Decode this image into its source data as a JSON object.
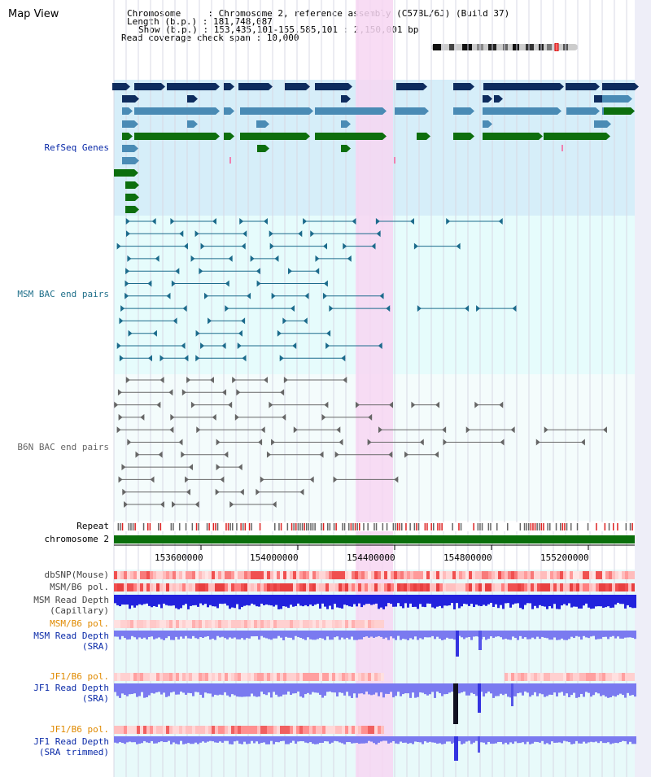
{
  "title": "Map View",
  "info": {
    "chromosome_line": "Chromosome     : Chromosome 2, reference assembly (C57BL/6J) (Build 37)",
    "length_line": "Length (b.p.) : 181,748,087",
    "show_line": "Show (b.p.) : 153,435,101-155,585,101 : 2,150,001 bp",
    "span_line": "Read coverage check span : 10,000"
  },
  "tracks": {
    "refseq": "RefSeq Genes",
    "msm_bac": "MSM BAC end pairs",
    "b6n_bac": "B6N BAC end pairs",
    "repeat": "Repeat",
    "chromosome": "chromosome 2",
    "dbsnp": "dbSNP(Mouse)",
    "msm_b6_pol_1": "MSM/B6 pol.",
    "msm_depth_cap_1": "MSM Read Depth",
    "msm_depth_cap_2": "(Capillary)",
    "msm_b6_pol_2": "MSM/B6 pol.",
    "msm_depth_sra_1": "MSM Read Depth",
    "msm_depth_sra_2": "(SRA)",
    "jf1_b6_pol_1": "JF1/B6 pol.",
    "jf1_depth_sra_1": "JF1 Read Depth",
    "jf1_depth_sra_2": "(SRA)",
    "jf1_b6_pol_2": "JF1/B6 pol.",
    "jf1_depth_trim_1": "JF1 Read Depth",
    "jf1_depth_trim_2": "(SRA trimmed)"
  },
  "ticks": [
    "153600000",
    "154000000",
    "154400000",
    "154800000",
    "155200000"
  ],
  "colors": {
    "refseq_bg": "#d6eef9",
    "bac_bg": "#e6fcfc",
    "highlight": "#f7d6f2",
    "gene_dark": "#0e2c5e",
    "gene_mid": "#4a8bb5",
    "gene_green": "#0d6e0d",
    "msm_line": "#1c6b8c",
    "b6n_line": "#666666",
    "chrom_bar": "#0a6e0a",
    "depth_blue": "#2222dd",
    "depth_purple": "#7a7af0",
    "label_blue": "#0a2aa8",
    "label_teal": "#1f6f8a",
    "label_orange": "#e08a00"
  }
}
